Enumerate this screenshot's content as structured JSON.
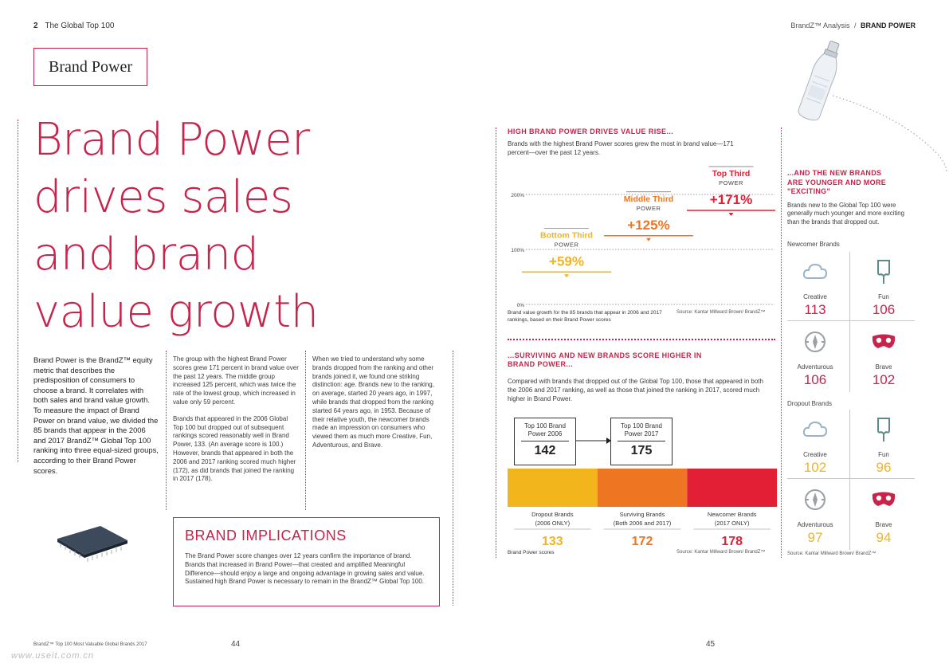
{
  "header": {
    "page_num_left": "2",
    "section_left": "The Global Top 100",
    "section_right_prefix": "BrandZ™ Analysis",
    "section_right_sep": "/",
    "section_right_bold": "BRAND POWER"
  },
  "tag_box": "Brand Power",
  "headline": [
    "Brand Power",
    "drives sales",
    "and brand",
    "value growth"
  ],
  "col1": "Brand Power is the BrandZ™ equity metric that describes the predisposition of consumers to choose a brand. It correlates with both sales and brand value growth. To measure the impact of Brand Power on brand value, we divided the 85 brands that appear in the 2006 and 2017 BrandZ™ Global Top 100 ranking into three equal-sized groups, according to their Brand Power scores.",
  "col2_p1": "The group with the highest Brand Power scores grew 171 percent in brand value over the past 12 years. The middle group increased 125 percent, which was twice the rate of the lowest group, which increased in value only 59 percent.",
  "col2_p2": "Brands that appeared in the 2006 Global Top 100 but dropped out of subsequent rankings scored reasonably well in Brand Power, 133. (An average score is 100.) However, brands that appeared in both the 2006 and 2017 ranking scored much higher (172), as did brands that joined the ranking in 2017 (178).",
  "col3": "When we tried to understand why some brands dropped from the ranking and other brands joined it, we found one striking distinction: age. Brands new to the ranking, on average, started 20 years ago, in 1997, while brands that dropped from the ranking started 64 years ago, in 1953. Because of their relative youth, the newcomer brands made an impression on consumers who viewed them as much more Creative, Fun, Adventurous, and Brave.",
  "implications": {
    "title": "BRAND IMPLICATIONS",
    "text": "The Brand Power score changes over 12 years confirm the importance of brand. Brands that increased in Brand Power—that created and amplified Meaningful Difference—should enjoy a large and ongoing advantage in growing sales and value. Sustained high Brand Power is necessary to remain in the BrandZ™ Global Top 100."
  },
  "footer": {
    "left_note": "BrandZ™ Top 100 Most Valuable Global Brands 2017",
    "page_left": "44",
    "page_right": "45",
    "watermark": "www.useit.com.cn"
  },
  "chart1": {
    "title": "HIGH BRAND POWER DRIVES VALUE RISE...",
    "intro": "Brands with the highest Brand Power scores grew the most in brand value—171 percent—over the past 12 years.",
    "caption": "Brand value growth for the 85 brands that appear in 2006 and 2017 rankings, based on their Brand Power scores",
    "source": "Source: Kantar Millward Brown/ BrandZ™",
    "axis_labels": [
      "200%",
      "100%",
      "0%"
    ]
  },
  "chart2": {
    "title": "...SURVIVING AND NEW BRANDS SCORE HIGHER IN BRAND POWER...",
    "intro": "Compared with brands that dropped out of the Global Top 100, those that appeared in both the 2006 and 2017 ranking, as well as those that joined the ranking in 2017, scored much higher in Brand Power.",
    "box1_label": "Top 100 Brand Power 2006",
    "box1_value": "142",
    "box2_label": "Top 100 Brand Power 2017",
    "box2_value": "175",
    "caption": "Brand Power scores",
    "source": "Source: Kantar Millward Brown/ BrandZ™"
  },
  "chart3": {
    "title": "...AND THE NEW BRANDS ARE YOUNGER AND MORE \"EXCITING\"",
    "intro": "Brands new to the Global Top 100 were generally much younger and more exciting than the brands that dropped out.",
    "newcomer_heading": "Newcomer Brands",
    "dropout_heading": "Dropout Brands",
    "source": "Source: Kantar Millward Brown/ BrandZ™"
  },
  "chart_data": [
    {
      "type": "bar",
      "title": "HIGH BRAND POWER DRIVES VALUE RISE...",
      "categories": [
        "Bottom Third",
        "Middle Third",
        "Top Third"
      ],
      "sublabel": "POWER",
      "values": [
        59,
        125,
        171
      ],
      "value_labels": [
        "+59%",
        "+125%",
        "+171%"
      ],
      "ylim": [
        0,
        200
      ],
      "colors": [
        "#f2b51b",
        "#ee7623",
        "#e31f35"
      ]
    },
    {
      "type": "bar",
      "title": "...SURVIVING AND NEW BRANDS SCORE HIGHER IN BRAND POWER...",
      "categories": [
        "Dropout Brands (2006 ONLY)",
        "Surviving Brands (Both 2006 and 2017)",
        "Newcomer Brands (2017 ONLY)"
      ],
      "values": [
        133,
        172,
        178
      ],
      "colors": [
        "#f2b51b",
        "#ee7623",
        "#e31f35"
      ]
    },
    {
      "type": "table",
      "title": "...AND THE NEW BRANDS ARE YOUNGER AND MORE \"EXCITING\"",
      "groups": [
        {
          "name": "Newcomer Brands",
          "items": [
            {
              "label": "Creative",
              "value": 113,
              "icon": "cloud-icon"
            },
            {
              "label": "Fun",
              "value": 106,
              "icon": "ice-lolly-icon"
            },
            {
              "label": "Adventurous",
              "value": 106,
              "icon": "compass-icon"
            },
            {
              "label": "Brave",
              "value": 102,
              "icon": "mask-icon"
            }
          ],
          "value_color": "#c8234a"
        },
        {
          "name": "Dropout Brands",
          "items": [
            {
              "label": "Creative",
              "value": 102,
              "icon": "cloud-icon"
            },
            {
              "label": "Fun",
              "value": 96,
              "icon": "ice-lolly-icon"
            },
            {
              "label": "Adventurous",
              "value": 97,
              "icon": "compass-icon"
            },
            {
              "label": "Brave",
              "value": 94,
              "icon": "mask-icon"
            }
          ],
          "value_color": "#f2b51b"
        }
      ]
    }
  ]
}
